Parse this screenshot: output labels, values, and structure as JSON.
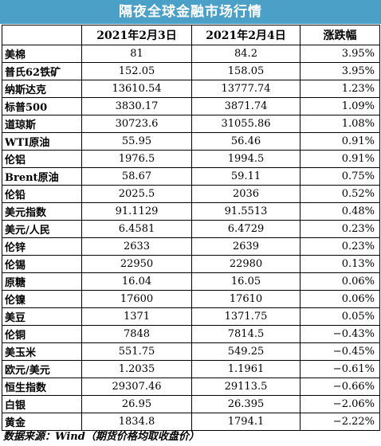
{
  "title": "隔夜全球金融市场行情",
  "headers": [
    "",
    "2021年2月3日",
    "2021年2月4日",
    "涨跌幅"
  ],
  "rows": [
    {
      "name": "美棉",
      "d1": "81",
      "d2": "84.2",
      "chg": "3.95%"
    },
    {
      "name": "普氏62铁矿",
      "d1": "152.05",
      "d2": "158.05",
      "chg": "3.95%"
    },
    {
      "name": "纳斯达克",
      "d1": "13610.54",
      "d2": "13777.74",
      "chg": "1.23%"
    },
    {
      "name": "标普500",
      "d1": "3830.17",
      "d2": "3871.74",
      "chg": "1.09%"
    },
    {
      "name": "道琼斯",
      "d1": "30723.6",
      "d2": "31055.86",
      "chg": "1.08%"
    },
    {
      "name": "WTI原油",
      "d1": "55.95",
      "d2": "56.46",
      "chg": "0.91%"
    },
    {
      "name": "伦铝",
      "d1": "1976.5",
      "d2": "1994.5",
      "chg": "0.91%"
    },
    {
      "name": "Brent原油",
      "d1": "58.67",
      "d2": "59.11",
      "chg": "0.75%"
    },
    {
      "name": "伦铅",
      "d1": "2025.5",
      "d2": "2036",
      "chg": "0.52%"
    },
    {
      "name": "美元指数",
      "d1": "91.1129",
      "d2": "91.5513",
      "chg": "0.48%"
    },
    {
      "name": "美元/人民",
      "d1": "6.4581",
      "d2": "6.4729",
      "chg": "0.23%"
    },
    {
      "name": "伦锌",
      "d1": "2633",
      "d2": "2639",
      "chg": "0.23%"
    },
    {
      "name": "伦锡",
      "d1": "22950",
      "d2": "22980",
      "chg": "0.13%"
    },
    {
      "name": "原糖",
      "d1": "16.04",
      "d2": "16.05",
      "chg": "0.06%"
    },
    {
      "name": "伦镍",
      "d1": "17600",
      "d2": "17610",
      "chg": "0.06%"
    },
    {
      "name": "美豆",
      "d1": "1371",
      "d2": "1371.75",
      "chg": "0.05%"
    },
    {
      "name": "伦铜",
      "d1": "7848",
      "d2": "7814.5",
      "chg": "−0.43%"
    },
    {
      "name": "美玉米",
      "d1": "551.75",
      "d2": "549.25",
      "chg": "−0.45%"
    },
    {
      "name": "欧元/美元",
      "d1": "1.2035",
      "d2": "1.1961",
      "chg": "−0.61%"
    },
    {
      "name": "恒生指数",
      "d1": "29307.46",
      "d2": "29113.5",
      "chg": "−0.66%"
    },
    {
      "name": "白银",
      "d1": "26.95",
      "d2": "26.395",
      "chg": "−2.06%"
    },
    {
      "name": "黄金",
      "d1": "1834.8",
      "d2": "1794.1",
      "chg": "−2.22%"
    }
  ],
  "footer": "数据来源：Wind（期货价格均取收盘价）",
  "colors": {
    "title_bg": "#4aa0c7",
    "title_text": "#ffffff",
    "grid": "#000000"
  }
}
